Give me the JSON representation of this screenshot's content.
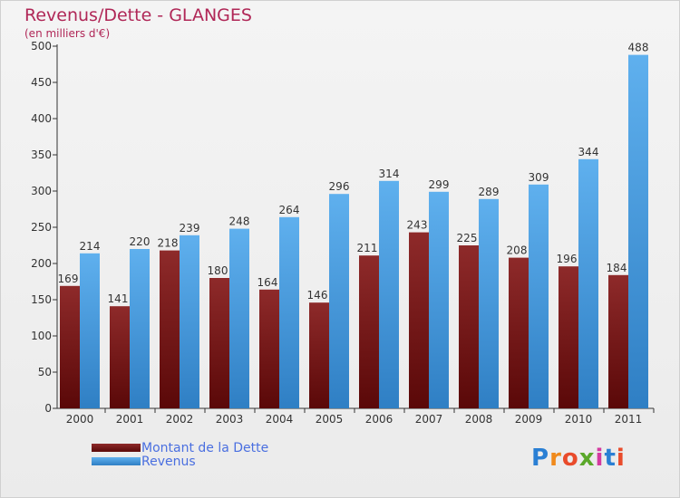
{
  "title": "Revenus/Dette - GLANGES",
  "subtitle": "(en milliers d'€)",
  "logo": "Proxiti",
  "colors": {
    "debt": "#7a1a1a",
    "revenue": "#4a9fe0",
    "title": "#b02757",
    "legend_text": "#4a6fe0"
  },
  "chart_data": {
    "type": "bar",
    "title": "Revenus/Dette - GLANGES",
    "subtitle": "(en milliers d'€)",
    "categories": [
      "2000",
      "2001",
      "2002",
      "2003",
      "2004",
      "2005",
      "2006",
      "2007",
      "2008",
      "2009",
      "2010",
      "2011"
    ],
    "series": [
      {
        "name": "Montant de la Dette",
        "color": "#7a1a1a",
        "values": [
          169,
          141,
          218,
          180,
          164,
          146,
          211,
          243,
          225,
          208,
          196,
          184
        ]
      },
      {
        "name": "Revenus",
        "color": "#4a9fe0",
        "values": [
          214,
          220,
          239,
          248,
          264,
          296,
          314,
          299,
          289,
          309,
          344,
          488
        ]
      }
    ],
    "ylim": [
      0,
      500
    ],
    "yticks": [
      0,
      50,
      100,
      150,
      200,
      250,
      300,
      350,
      400,
      450,
      500
    ],
    "grid": false,
    "legend": "bottom-left"
  }
}
